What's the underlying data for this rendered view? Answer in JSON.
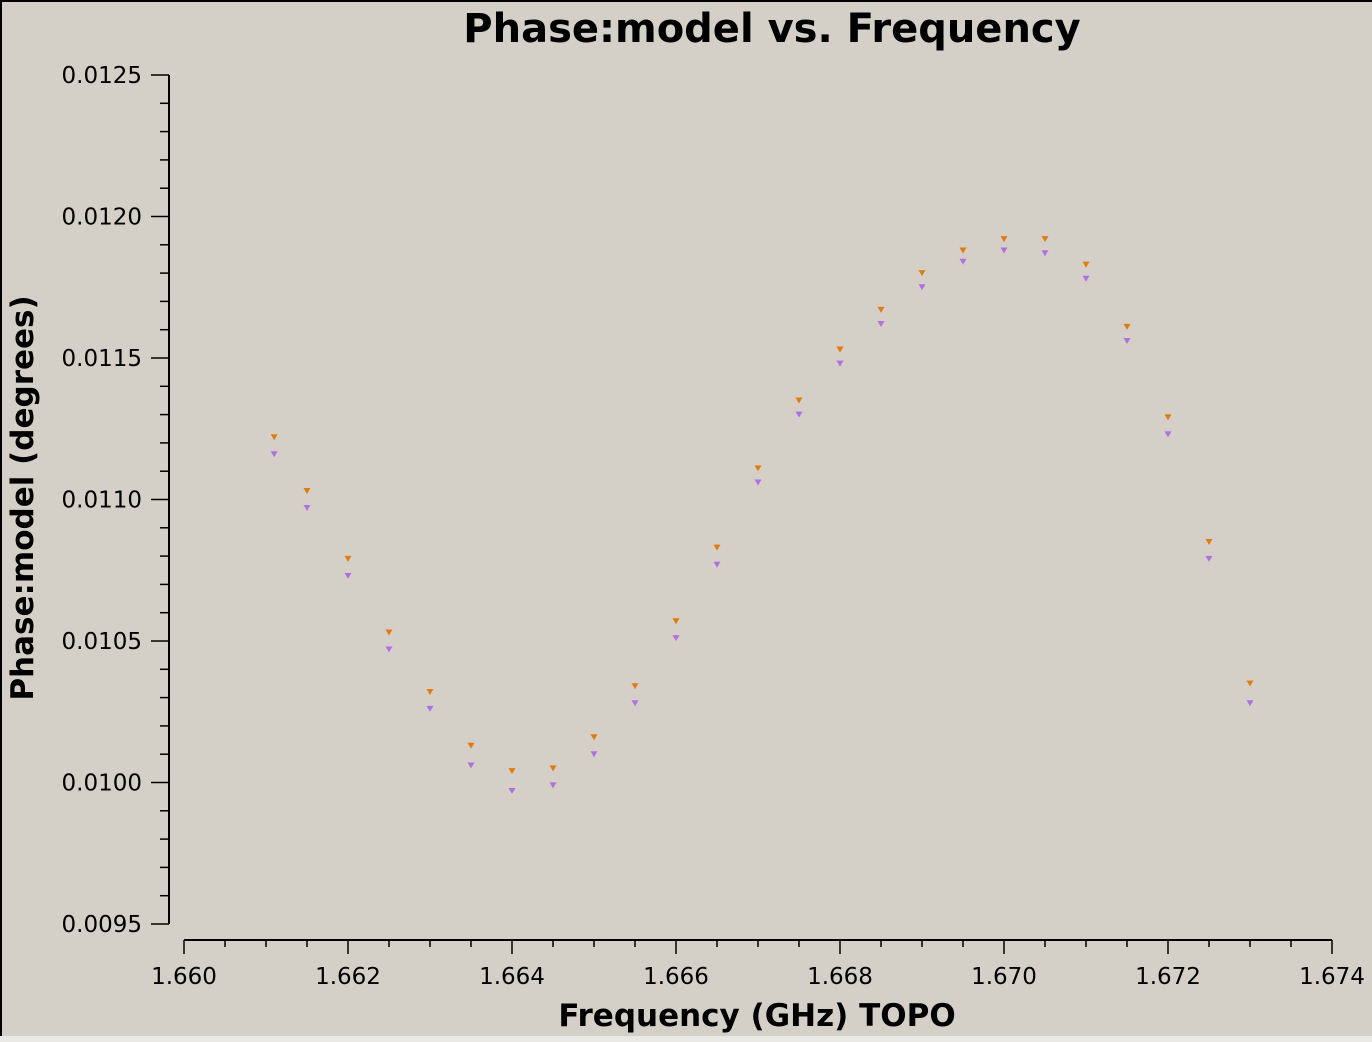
{
  "chart_data": {
    "type": "scatter",
    "title": "Phase:model vs. Frequency",
    "xlabel": "Frequency (GHz) TOPO",
    "ylabel": "Phase:model (degrees)",
    "xlim": [
      1.66,
      1.674
    ],
    "ylim": [
      0.0095,
      0.0125
    ],
    "x_ticks": [
      "1.660",
      "1.662",
      "1.664",
      "1.666",
      "1.668",
      "1.670",
      "1.672",
      "1.674"
    ],
    "y_ticks": [
      "0.0095",
      "0.0100",
      "0.0105",
      "0.0110",
      "0.0115",
      "0.0120",
      "0.0125"
    ],
    "grid": false,
    "marker": "down-triangle",
    "series": [
      {
        "color": "#e07b10",
        "points": [
          [
            1.6611,
            0.01122
          ],
          [
            1.6615,
            0.01103
          ],
          [
            1.662,
            0.01079
          ],
          [
            1.6625,
            0.01053
          ],
          [
            1.663,
            0.01032
          ],
          [
            1.6635,
            0.01013
          ],
          [
            1.664,
            0.01004
          ],
          [
            1.6645,
            0.01005
          ],
          [
            1.665,
            0.01016
          ],
          [
            1.6655,
            0.01034
          ],
          [
            1.666,
            0.01057
          ],
          [
            1.6665,
            0.01083
          ],
          [
            1.667,
            0.01111
          ],
          [
            1.6675,
            0.01135
          ],
          [
            1.668,
            0.01153
          ],
          [
            1.6685,
            0.01167
          ],
          [
            1.669,
            0.0118
          ],
          [
            1.6695,
            0.01188
          ],
          [
            1.67,
            0.01192
          ],
          [
            1.6705,
            0.01192
          ],
          [
            1.671,
            0.01183
          ],
          [
            1.6715,
            0.01161
          ],
          [
            1.672,
            0.01129
          ],
          [
            1.6725,
            0.01085
          ],
          [
            1.673,
            0.01035
          ]
        ]
      },
      {
        "color": "#b070e0",
        "points": [
          [
            1.6611,
            0.01116
          ],
          [
            1.6615,
            0.01097
          ],
          [
            1.662,
            0.01073
          ],
          [
            1.6625,
            0.01047
          ],
          [
            1.663,
            0.01026
          ],
          [
            1.6635,
            0.01006
          ],
          [
            1.664,
            0.00997
          ],
          [
            1.6645,
            0.00999
          ],
          [
            1.665,
            0.0101
          ],
          [
            1.6655,
            0.01028
          ],
          [
            1.666,
            0.01051
          ],
          [
            1.6665,
            0.01077
          ],
          [
            1.667,
            0.01106
          ],
          [
            1.6675,
            0.0113
          ],
          [
            1.668,
            0.01148
          ],
          [
            1.6685,
            0.01162
          ],
          [
            1.669,
            0.01175
          ],
          [
            1.6695,
            0.01184
          ],
          [
            1.67,
            0.01188
          ],
          [
            1.6705,
            0.01187
          ],
          [
            1.671,
            0.01178
          ],
          [
            1.6715,
            0.01156
          ],
          [
            1.672,
            0.01123
          ],
          [
            1.6725,
            0.01079
          ],
          [
            1.673,
            0.01028
          ]
        ]
      }
    ]
  }
}
